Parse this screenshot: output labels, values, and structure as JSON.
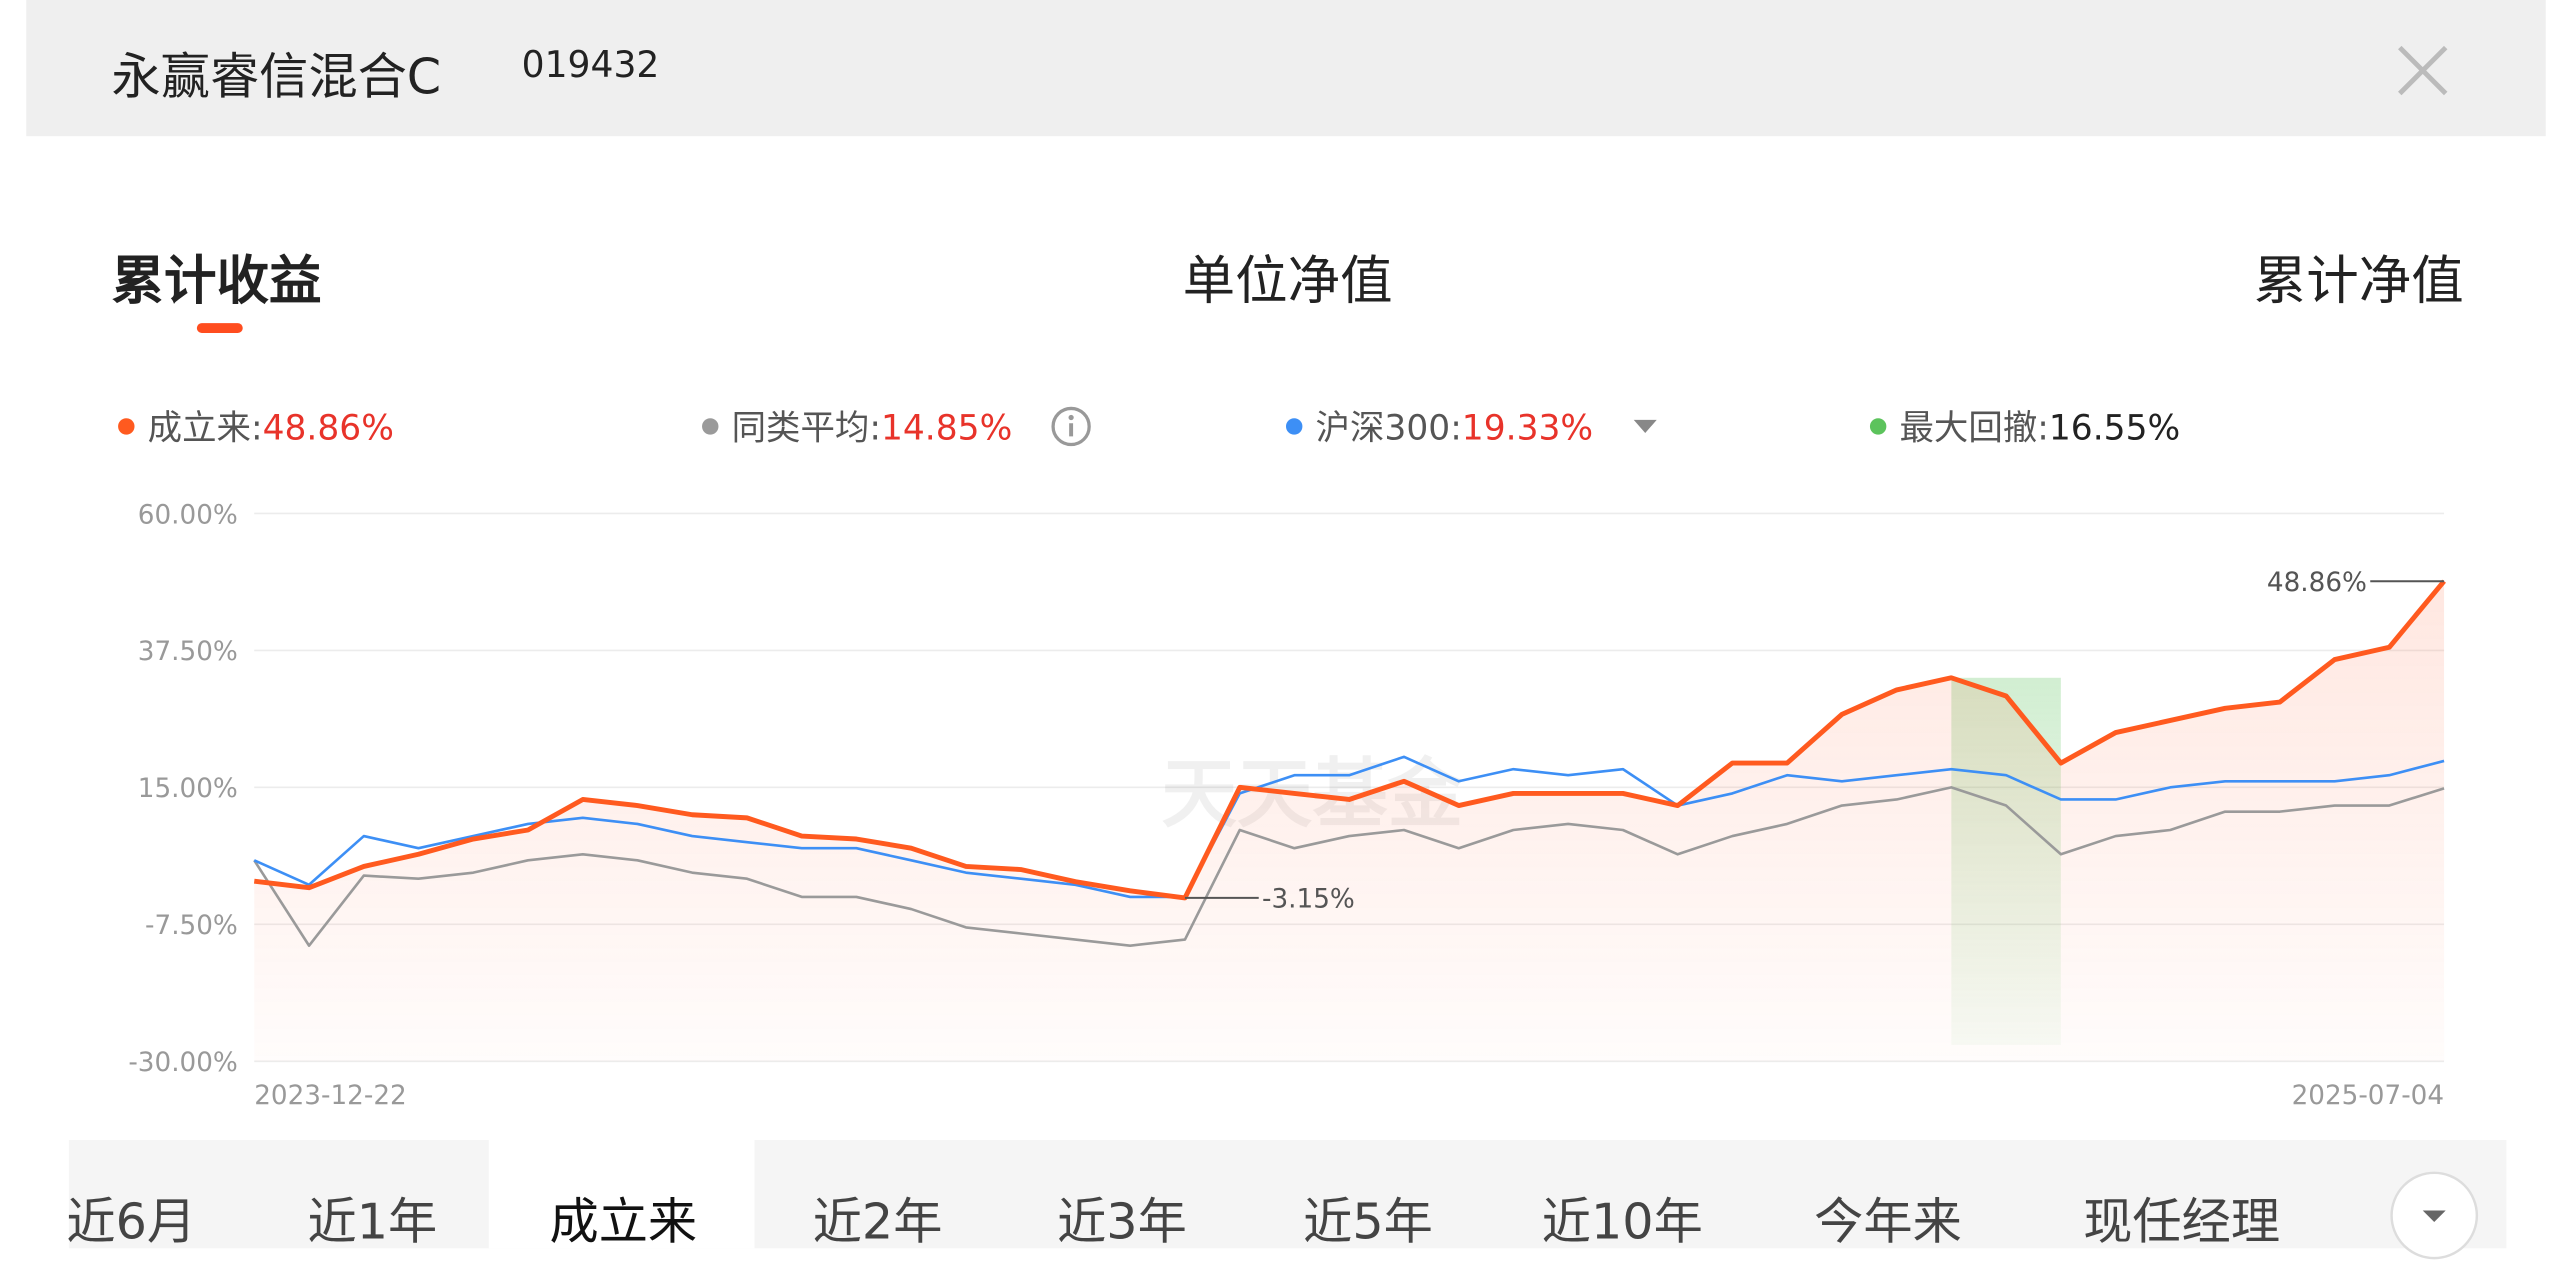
{
  "header": {
    "title": "永赢睿信混合C",
    "code": "019432"
  },
  "tabs": [
    "累计收益",
    "单位净值",
    "累计净值"
  ],
  "max_drawdown": {
    "name": "最大回撤",
    "value": "16.55%",
    "color": "#5cc35c"
  },
  "periods": [
    "近6月",
    "近1年",
    "成立来",
    "近2年",
    "近3年",
    "近5年",
    "近10年",
    "今年来",
    "现任经理"
  ],
  "chart_data": {
    "type": "line",
    "watermark": "天天基金",
    "categories": [
      "2023-12-22",
      null,
      null,
      null,
      null,
      null,
      null,
      null,
      null,
      null,
      null,
      null,
      null,
      null,
      null,
      null,
      null,
      null,
      null,
      null,
      null,
      null,
      null,
      null,
      null,
      null,
      null,
      null,
      null,
      null,
      null,
      null,
      null,
      null,
      null,
      null,
      null,
      null,
      null,
      null,
      "2025-07-04"
    ],
    "series": [
      {
        "name": "成立来",
        "color": "#ff5a1f",
        "legend_value": "48.86%",
        "values": [
          -0.4,
          -1.5,
          2,
          4,
          6.5,
          8,
          13,
          12,
          10.5,
          10,
          7,
          6.5,
          5,
          2,
          1.5,
          -0.5,
          -2,
          -3.15,
          15,
          14,
          13,
          16,
          12,
          14,
          14,
          14,
          12,
          19,
          19,
          27,
          31,
          33,
          30,
          19,
          24,
          26,
          28,
          29,
          36,
          38,
          48.86
        ],
        "value_labels": [
          null,
          null,
          null,
          null,
          null,
          null,
          null,
          null,
          null,
          null,
          null,
          null,
          null,
          null,
          null,
          null,
          null,
          "-3.15%",
          null,
          null,
          null,
          null,
          null,
          null,
          null,
          null,
          null,
          null,
          null,
          null,
          null,
          null,
          null,
          null,
          null,
          null,
          null,
          null,
          null,
          null,
          "48.86%"
        ]
      },
      {
        "name": "同类平均",
        "color": "#9a9a9a",
        "legend_value": "14.85%",
        "values": [
          3,
          -11,
          0.5,
          0,
          1,
          3,
          4,
          3,
          1,
          0,
          -3,
          -3,
          -5,
          -8,
          -9,
          -10,
          -11,
          -10,
          8,
          5,
          7,
          8,
          5,
          8,
          9,
          8,
          4,
          7,
          9,
          12,
          13,
          15,
          12,
          4,
          7,
          8,
          11,
          11,
          12,
          12,
          14.85
        ]
      },
      {
        "name": "沪深300",
        "color": "#3d8ff5",
        "legend_value": "19.33%",
        "values": [
          3,
          -1,
          7,
          5,
          7,
          9,
          10,
          9,
          7,
          6,
          5,
          5,
          3,
          1,
          0,
          -1,
          -3,
          -3,
          14,
          17,
          17,
          20,
          16,
          18,
          17,
          18,
          12,
          14,
          17,
          16,
          17,
          18,
          17,
          13,
          13,
          15,
          16,
          16,
          16,
          17,
          19.33
        ]
      }
    ],
    "ylim": [
      -30,
      60
    ],
    "yticks": [
      {
        "value": -30,
        "label": "-30.00%"
      },
      {
        "value": -7.5,
        "label": "-7.50%"
      },
      {
        "value": 15,
        "label": "15.00%"
      },
      {
        "value": 37.5,
        "label": "37.50%"
      },
      {
        "value": 60,
        "label": "60.00%"
      }
    ],
    "grid": true
  }
}
